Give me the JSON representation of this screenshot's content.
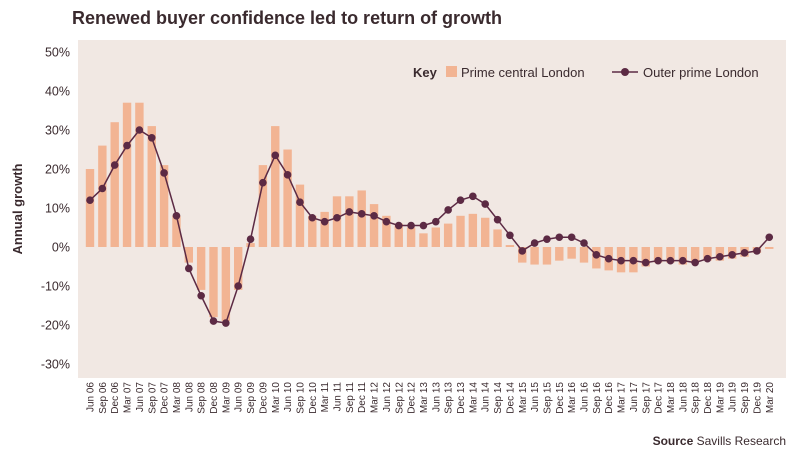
{
  "chart_data": {
    "type": "bar",
    "title": "Renewed buyer confidence led to return of growth",
    "ylabel": "Annual growth",
    "xlabel": "",
    "ylim": [
      -30,
      50
    ],
    "yticks": [
      -30,
      -20,
      -10,
      0,
      10,
      20,
      30,
      40,
      50
    ],
    "ytick_labels": [
      "-30%",
      "-20%",
      "-10%",
      "0%",
      "10%",
      "20%",
      "30%",
      "40%",
      "50%"
    ],
    "grid": false,
    "legend_position": "top-right",
    "legend_key": "Key",
    "categories": [
      "Jun 06",
      "Sep 06",
      "Dec 06",
      "Mar 07",
      "Jun 07",
      "Sep 07",
      "Dec 07",
      "Mar 08",
      "Jun 08",
      "Sep 08",
      "Dec 08",
      "Mar 09",
      "Jun 09",
      "Sep 09",
      "Dec 09",
      "Mar 10",
      "Jun 10",
      "Sep 10",
      "Dec 10",
      "Mar 11",
      "Jun 11",
      "Sep 11",
      "Dec 11",
      "Mar 12",
      "Jun 12",
      "Sep 12",
      "Dec 12",
      "Mar 13",
      "Jun 13",
      "Sep 13",
      "Dec 13",
      "Mar 14",
      "Jun 14",
      "Sep 14",
      "Dec 14",
      "Mar 15",
      "Jun 15",
      "Sep 15",
      "Dec 15",
      "Mar 16",
      "Jun 16",
      "Sep 16",
      "Dec 16",
      "Mar 17",
      "Jun 17",
      "Sep 17",
      "Dec 17",
      "Mar 18",
      "Jun 18",
      "Sep 18",
      "Dec 18",
      "Mar 19",
      "Jun 19",
      "Sep 19",
      "Dec 19",
      "Mar 20"
    ],
    "series": [
      {
        "name": "Prime central London",
        "type": "bar",
        "color": "#f2b493",
        "values": [
          20,
          26,
          32,
          37,
          37,
          31,
          21,
          8,
          -4,
          -11,
          -18,
          -19,
          -11,
          1,
          21,
          31,
          25,
          16,
          8,
          9,
          13,
          13,
          14.5,
          11,
          8,
          6,
          5,
          3.5,
          5,
          6,
          8,
          8.5,
          7.5,
          4.5,
          0.5,
          -4,
          -4.5,
          -4.5,
          -3.5,
          -3,
          -4,
          -5.5,
          -6,
          -6.5,
          -6.5,
          -5,
          -4,
          -4,
          -4.5,
          -4,
          -3.5,
          -3.5,
          -3,
          -2.5,
          -1.5,
          -0.5
        ]
      },
      {
        "name": "Outer prime London",
        "type": "line",
        "color": "#5c2a44",
        "values": [
          12,
          15,
          21,
          26,
          30,
          28,
          19,
          8,
          -5.5,
          -12.5,
          -19,
          -19.5,
          -10,
          2,
          16.5,
          23.5,
          18.5,
          11.5,
          7.5,
          6.5,
          7.5,
          9,
          8.5,
          8,
          6.5,
          5.5,
          5.5,
          5.5,
          6.5,
          9.5,
          12,
          13,
          11,
          7,
          3,
          -1,
          1,
          2,
          2.5,
          2.5,
          1,
          -2,
          -3,
          -3.5,
          -3.5,
          -4,
          -3.5,
          -3.5,
          -3.5,
          -4,
          -3,
          -2.5,
          -2,
          -1.5,
          -1,
          2.5
        ]
      }
    ]
  },
  "footer": {
    "source_label": "Source",
    "source_text": "Savills Research"
  }
}
